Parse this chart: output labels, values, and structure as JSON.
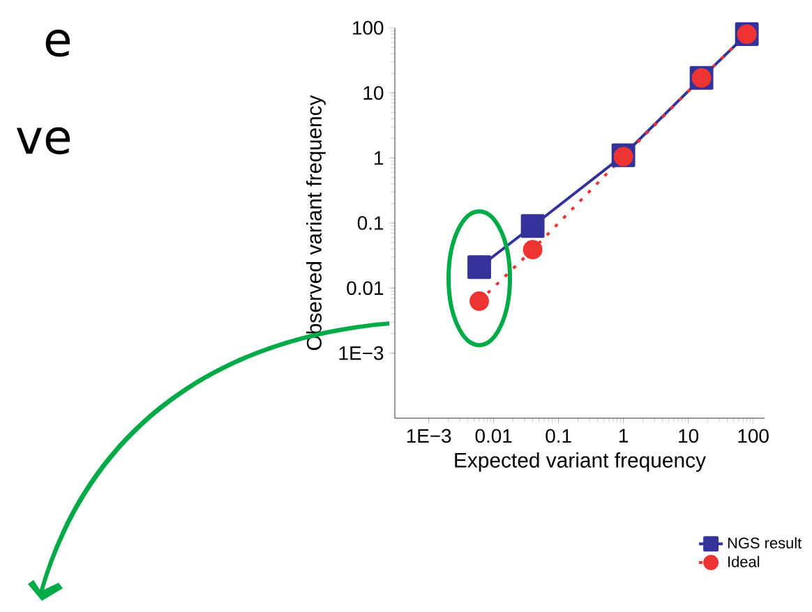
{
  "chart_data": {
    "type": "line",
    "xlabel": "Expected variant frequency",
    "ylabel": "Observed variant frequency",
    "x": [
      0.006,
      0.04,
      1,
      16,
      80
    ],
    "series": [
      {
        "name": "NGS result",
        "color": "#333399",
        "values": [
          0.021,
          0.09,
          1.1,
          17,
          80
        ],
        "marker": "square",
        "line_style": "solid"
      },
      {
        "name": "Ideal",
        "color": "#ee3333",
        "values": [
          0.0063,
          0.039,
          1.05,
          17,
          80
        ],
        "marker": "circle",
        "line_style": "dashed"
      }
    ],
    "log": "xy",
    "xlim": [
      0.0003,
      150
    ],
    "ylim": [
      0.0001,
      100
    ],
    "xticks": [
      {
        "value": 0.001,
        "label": "1E−3"
      },
      0.01,
      0.1,
      1,
      10,
      100
    ],
    "yticks": [
      {
        "value": 0.001,
        "label": "1E−3"
      },
      0.01,
      0.1,
      1,
      10,
      100
    ],
    "legend": "bottom right",
    "annotations": [
      "e",
      "ve"
    ]
  }
}
